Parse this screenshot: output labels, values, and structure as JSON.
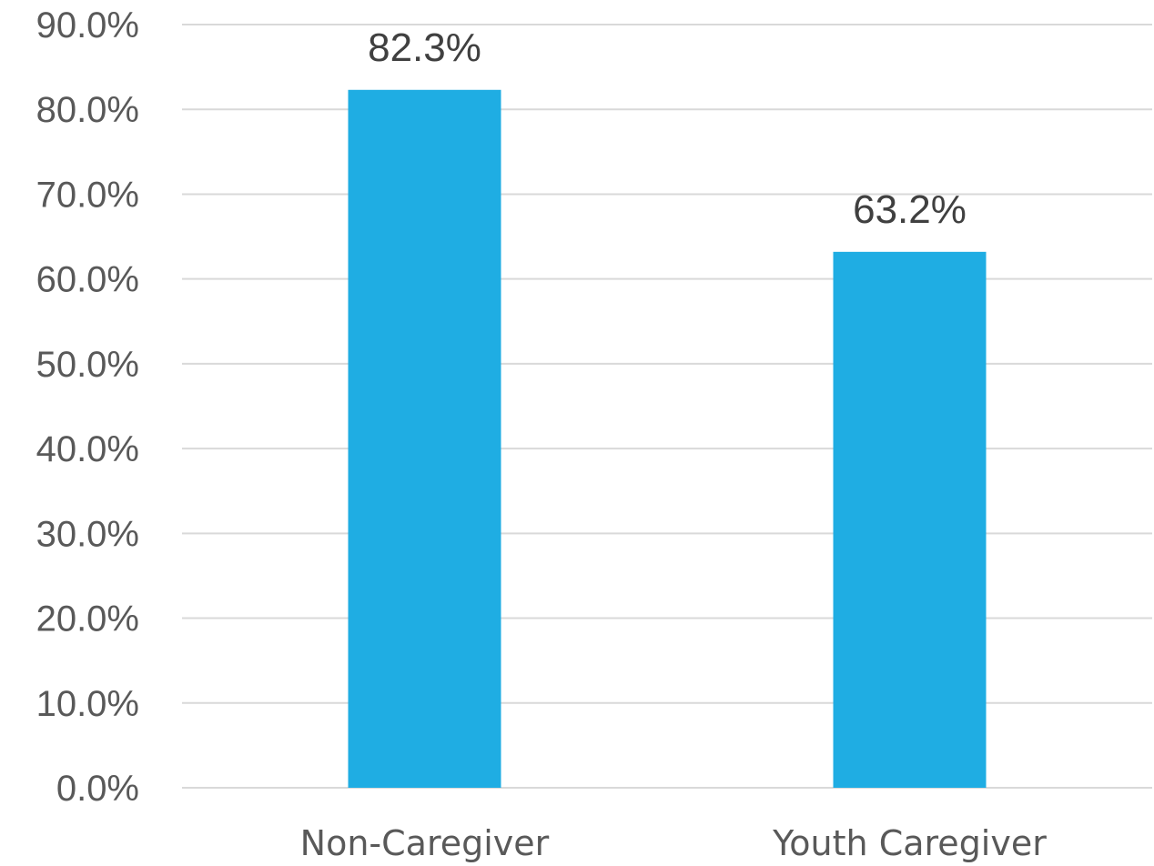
{
  "chart_data": {
    "type": "bar",
    "categories": [
      "Non-Caregiver",
      "Youth Caregiver"
    ],
    "values": [
      82.3,
      63.2
    ],
    "data_labels": [
      "82.3%",
      "63.2%"
    ],
    "title": "",
    "xlabel": "",
    "ylabel": "",
    "ylim": [
      0,
      90
    ],
    "yticks": [
      "0.0%",
      "10.0%",
      "20.0%",
      "30.0%",
      "40.0%",
      "50.0%",
      "60.0%",
      "70.0%",
      "80.0%",
      "90.0%"
    ],
    "grid": true,
    "legend": "none",
    "bar_color": "#1fade3"
  }
}
